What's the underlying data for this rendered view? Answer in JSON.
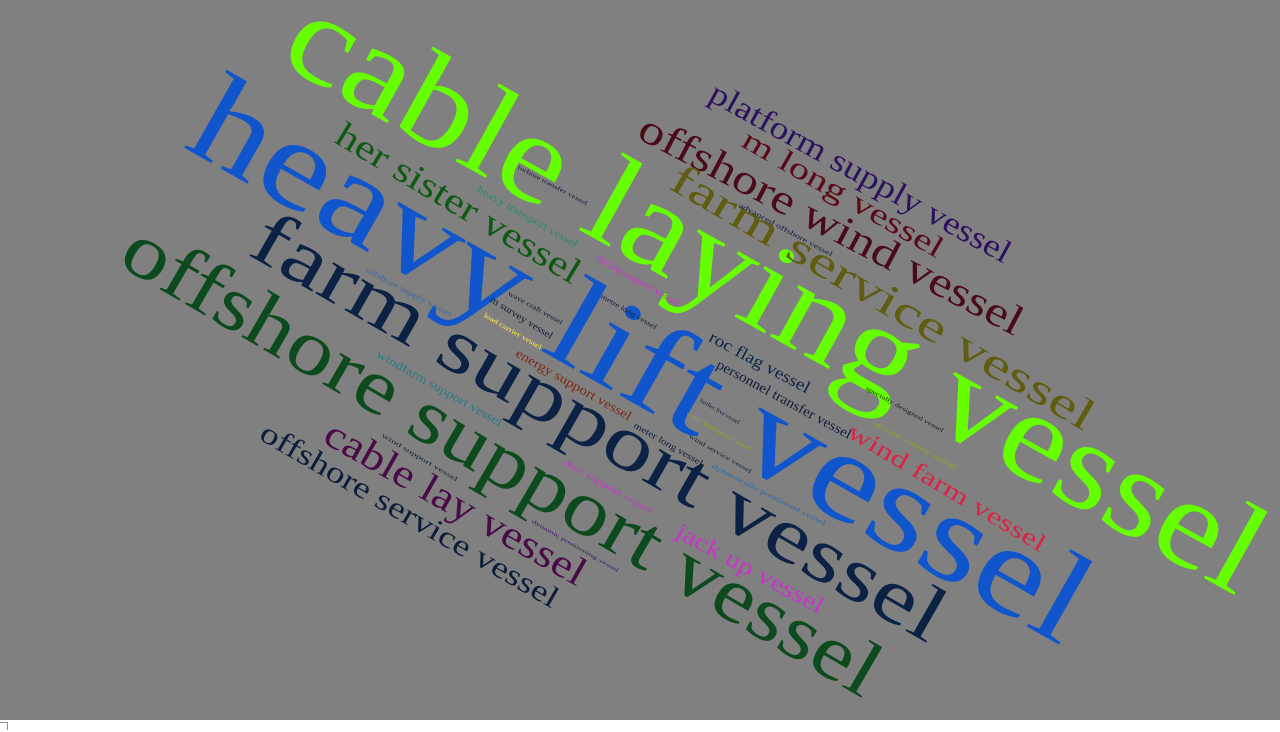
{
  "cloud": {
    "background": "#808080",
    "words": [
      {
        "text": "cable laying vessel",
        "color": "#66ff00"
      },
      {
        "text": "heavy lift vessel",
        "color": "#1155cc"
      },
      {
        "text": "farm support vessel",
        "color": "#0b2244"
      },
      {
        "text": "offshore support vessel",
        "color": "#0d4a1e"
      },
      {
        "text": "offshore wind vessel",
        "color": "#4a0a18"
      },
      {
        "text": "farm service vessel",
        "color": "#605c10"
      },
      {
        "text": "platform supply vessel",
        "color": "#2e1060"
      },
      {
        "text": "m long vessel",
        "color": "#5c0a18"
      },
      {
        "text": "her sister vessel",
        "color": "#0d5a12"
      },
      {
        "text": "cable lay vessel",
        "color": "#4a0a48"
      },
      {
        "text": "offshore service vessel",
        "color": "#0b1d3a"
      },
      {
        "text": "wind farm vessel",
        "color": "#dd2244"
      },
      {
        "text": "jack up vessel",
        "color": "#cc33cc"
      },
      {
        "text": "roc flag vessel",
        "color": "#0b2244"
      },
      {
        "text": "personnel transfer vessel",
        "color": "#0b1d3a"
      },
      {
        "text": "energy support vessel",
        "color": "#7a2a10"
      },
      {
        "text": "windfarm support vessel",
        "color": "#2a7a88"
      },
      {
        "text": "heavy transport vessel",
        "color": "#2a8a70"
      },
      {
        "text": "offshore supply vessel",
        "color": "#3a6a9a"
      },
      {
        "text": "meter long vessel",
        "color": "#0b1d3a"
      },
      {
        "text": "dive support vessel",
        "color": "#cc33cc"
      },
      {
        "text": "m survey vessel",
        "color": "#0b1d3a"
      },
      {
        "text": "load carrier vessel",
        "color": "#ffee44"
      },
      {
        "text": "wave craft vessel",
        "color": "#0b1d3a"
      },
      {
        "text": "metre long vessel",
        "color": "#0b1d3a"
      },
      {
        "text": "diving support vessel",
        "color": "#cc33cc"
      },
      {
        "text": "advanced offshore vessel",
        "color": "#0b1d3a"
      },
      {
        "text": "turbine transfer vessel",
        "color": "#0b1d3a"
      },
      {
        "text": "specially designed vessel",
        "color": "#1a1a1a"
      },
      {
        "text": "seismic survey vessel",
        "color": "#88aa22"
      },
      {
        "text": "further five vessel",
        "color": "#0b1d3a"
      },
      {
        "text": "crew transport vessel",
        "color": "#88aa22"
      },
      {
        "text": "wind service vessel",
        "color": "#0b1d3a"
      },
      {
        "text": "dynamically positioned vessel",
        "color": "#2a6aaa"
      },
      {
        "text": "wind support vessel",
        "color": "#0b1d3a"
      },
      {
        "text": "dynamic positioning vessel",
        "color": "#3a0a70"
      }
    ]
  }
}
